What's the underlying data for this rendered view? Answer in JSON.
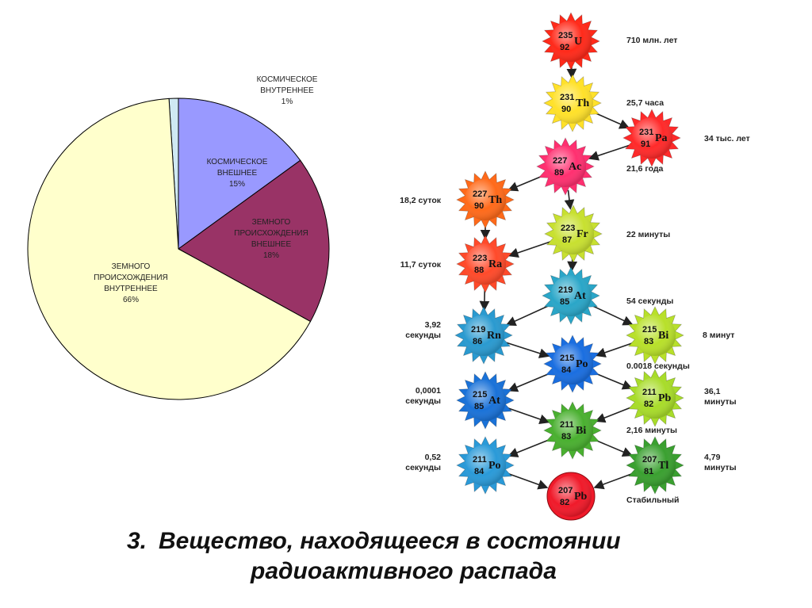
{
  "pie_chart": {
    "chart_data": {
      "type": "pie",
      "slices": [
        {
          "label": "КОСМИЧЕСКОЕ ВНУТРЕННЕЕ",
          "lines": [
            "КОСМИЧЕСКОЕ",
            "ВНУТРЕННЕЕ",
            "1%"
          ],
          "value": 1,
          "color": "#cfe9f3"
        },
        {
          "label": "КОСМИЧЕСКОЕ ВНЕШНЕЕ",
          "lines": [
            "КОСМИЧЕСКОЕ",
            "ВНЕШНЕЕ",
            "15%"
          ],
          "value": 15,
          "color": "#9999ff"
        },
        {
          "label": "ЗЕМНОГО ПРОИСХОЖДЕНИЯ ВНЕШНЕЕ",
          "lines": [
            "ЗЕМНОГО",
            "ПРОИСХОЖДЕНИЯ",
            "ВНЕШНЕЕ",
            "18%"
          ],
          "value": 18,
          "color": "#993366"
        },
        {
          "label": "ЗЕМНОГО ПРОИСХОЖДЕНИЯ ВНУТРЕННЕЕ",
          "lines": [
            "ЗЕМНОГО",
            "ПРОИСХОЖДЕНИЯ",
            "ВНУТРЕННЕЕ",
            "66%"
          ],
          "value": 66,
          "color": "#ffffcc"
        }
      ]
    }
  },
  "decay_chain": {
    "nuclides": [
      {
        "id": "u235",
        "mass": "235",
        "z": "92",
        "sym": "U",
        "color": "#ff2a1a"
      },
      {
        "id": "th231",
        "mass": "231",
        "z": "90",
        "sym": "Th",
        "color": "#ffe12a"
      },
      {
        "id": "pa231",
        "mass": "231",
        "z": "91",
        "sym": "Pa",
        "color": "#ff2a2a"
      },
      {
        "id": "ac227",
        "mass": "227",
        "z": "89",
        "sym": "Ac",
        "color": "#ff3070"
      },
      {
        "id": "th227",
        "mass": "227",
        "z": "90",
        "sym": "Th",
        "color": "#ff6a1a"
      },
      {
        "id": "fr223",
        "mass": "223",
        "z": "87",
        "sym": "Fr",
        "color": "#c8e030"
      },
      {
        "id": "ra223",
        "mass": "223",
        "z": "88",
        "sym": "Ra",
        "color": "#ff4a2a"
      },
      {
        "id": "at219",
        "mass": "219",
        "z": "85",
        "sym": "At",
        "color": "#2aa6c8"
      },
      {
        "id": "rn219",
        "mass": "219",
        "z": "86",
        "sym": "Rn",
        "color": "#2a9ad0"
      },
      {
        "id": "bi215",
        "mass": "215",
        "z": "83",
        "sym": "Bi",
        "color": "#b8e02a"
      },
      {
        "id": "po215",
        "mass": "215",
        "z": "84",
        "sym": "Po",
        "color": "#1a6ee0"
      },
      {
        "id": "at215",
        "mass": "215",
        "z": "85",
        "sym": "At",
        "color": "#1a72d8"
      },
      {
        "id": "pb211",
        "mass": "211",
        "z": "82",
        "sym": "Pb",
        "color": "#a8dc2a"
      },
      {
        "id": "bi211",
        "mass": "211",
        "z": "83",
        "sym": "Bi",
        "color": "#4ab030"
      },
      {
        "id": "po211",
        "mass": "211",
        "z": "84",
        "sym": "Po",
        "color": "#2a9ad8"
      },
      {
        "id": "tl207",
        "mass": "207",
        "z": "81",
        "sym": "Tl",
        "color": "#3aa030"
      },
      {
        "id": "pb207",
        "mass": "207",
        "z": "82",
        "sym": "Pb",
        "color": "#f01a2a"
      }
    ],
    "half_lives": [
      {
        "id": "u235",
        "lines": [
          "710 млн. лет"
        ]
      },
      {
        "id": "th231",
        "lines": [
          "25,7 часа"
        ]
      },
      {
        "id": "pa231",
        "lines": [
          "34 тыс. лет"
        ]
      },
      {
        "id": "ac227",
        "lines": [
          "21,6 года"
        ]
      },
      {
        "id": "th227",
        "lines": [
          "18,2 суток"
        ]
      },
      {
        "id": "fr223",
        "lines": [
          "22 минуты"
        ]
      },
      {
        "id": "ra223",
        "lines": [
          "11,7 суток"
        ]
      },
      {
        "id": "at219",
        "lines": [
          "54 секунды"
        ]
      },
      {
        "id": "rn219",
        "lines": [
          "3,92",
          "секунды"
        ]
      },
      {
        "id": "bi215",
        "lines": [
          "8 минут"
        ]
      },
      {
        "id": "po215",
        "lines": [
          "0.0018 секунды"
        ]
      },
      {
        "id": "at215",
        "lines": [
          "0,0001",
          "секунды"
        ]
      },
      {
        "id": "pb211",
        "lines": [
          "36,1",
          "минуты"
        ]
      },
      {
        "id": "bi211",
        "lines": [
          "2,16 минуты"
        ]
      },
      {
        "id": "po211",
        "lines": [
          "0,52",
          "секунды"
        ]
      },
      {
        "id": "tl207",
        "lines": [
          "4,79",
          "минуты"
        ]
      },
      {
        "id": "pb207",
        "lines": [
          "Стабильный"
        ]
      }
    ],
    "transitions": [
      [
        "u235",
        "th231"
      ],
      [
        "th231",
        "pa231"
      ],
      [
        "pa231",
        "ac227"
      ],
      [
        "ac227",
        "th227"
      ],
      [
        "ac227",
        "fr223"
      ],
      [
        "th227",
        "ra223"
      ],
      [
        "fr223",
        "ra223"
      ],
      [
        "fr223",
        "at219"
      ],
      [
        "ra223",
        "rn219"
      ],
      [
        "at219",
        "rn219"
      ],
      [
        "at219",
        "bi215"
      ],
      [
        "rn219",
        "po215"
      ],
      [
        "bi215",
        "po215"
      ],
      [
        "po215",
        "at215"
      ],
      [
        "po215",
        "pb211"
      ],
      [
        "at215",
        "bi211"
      ],
      [
        "pb211",
        "bi211"
      ],
      [
        "bi211",
        "po211"
      ],
      [
        "bi211",
        "tl207"
      ],
      [
        "po211",
        "pb207"
      ],
      [
        "tl207",
        "pb207"
      ]
    ]
  },
  "footer": {
    "number": "3.",
    "line1": "Вещество, находящееся в состоянии",
    "line2": "радиоактивного распада"
  }
}
